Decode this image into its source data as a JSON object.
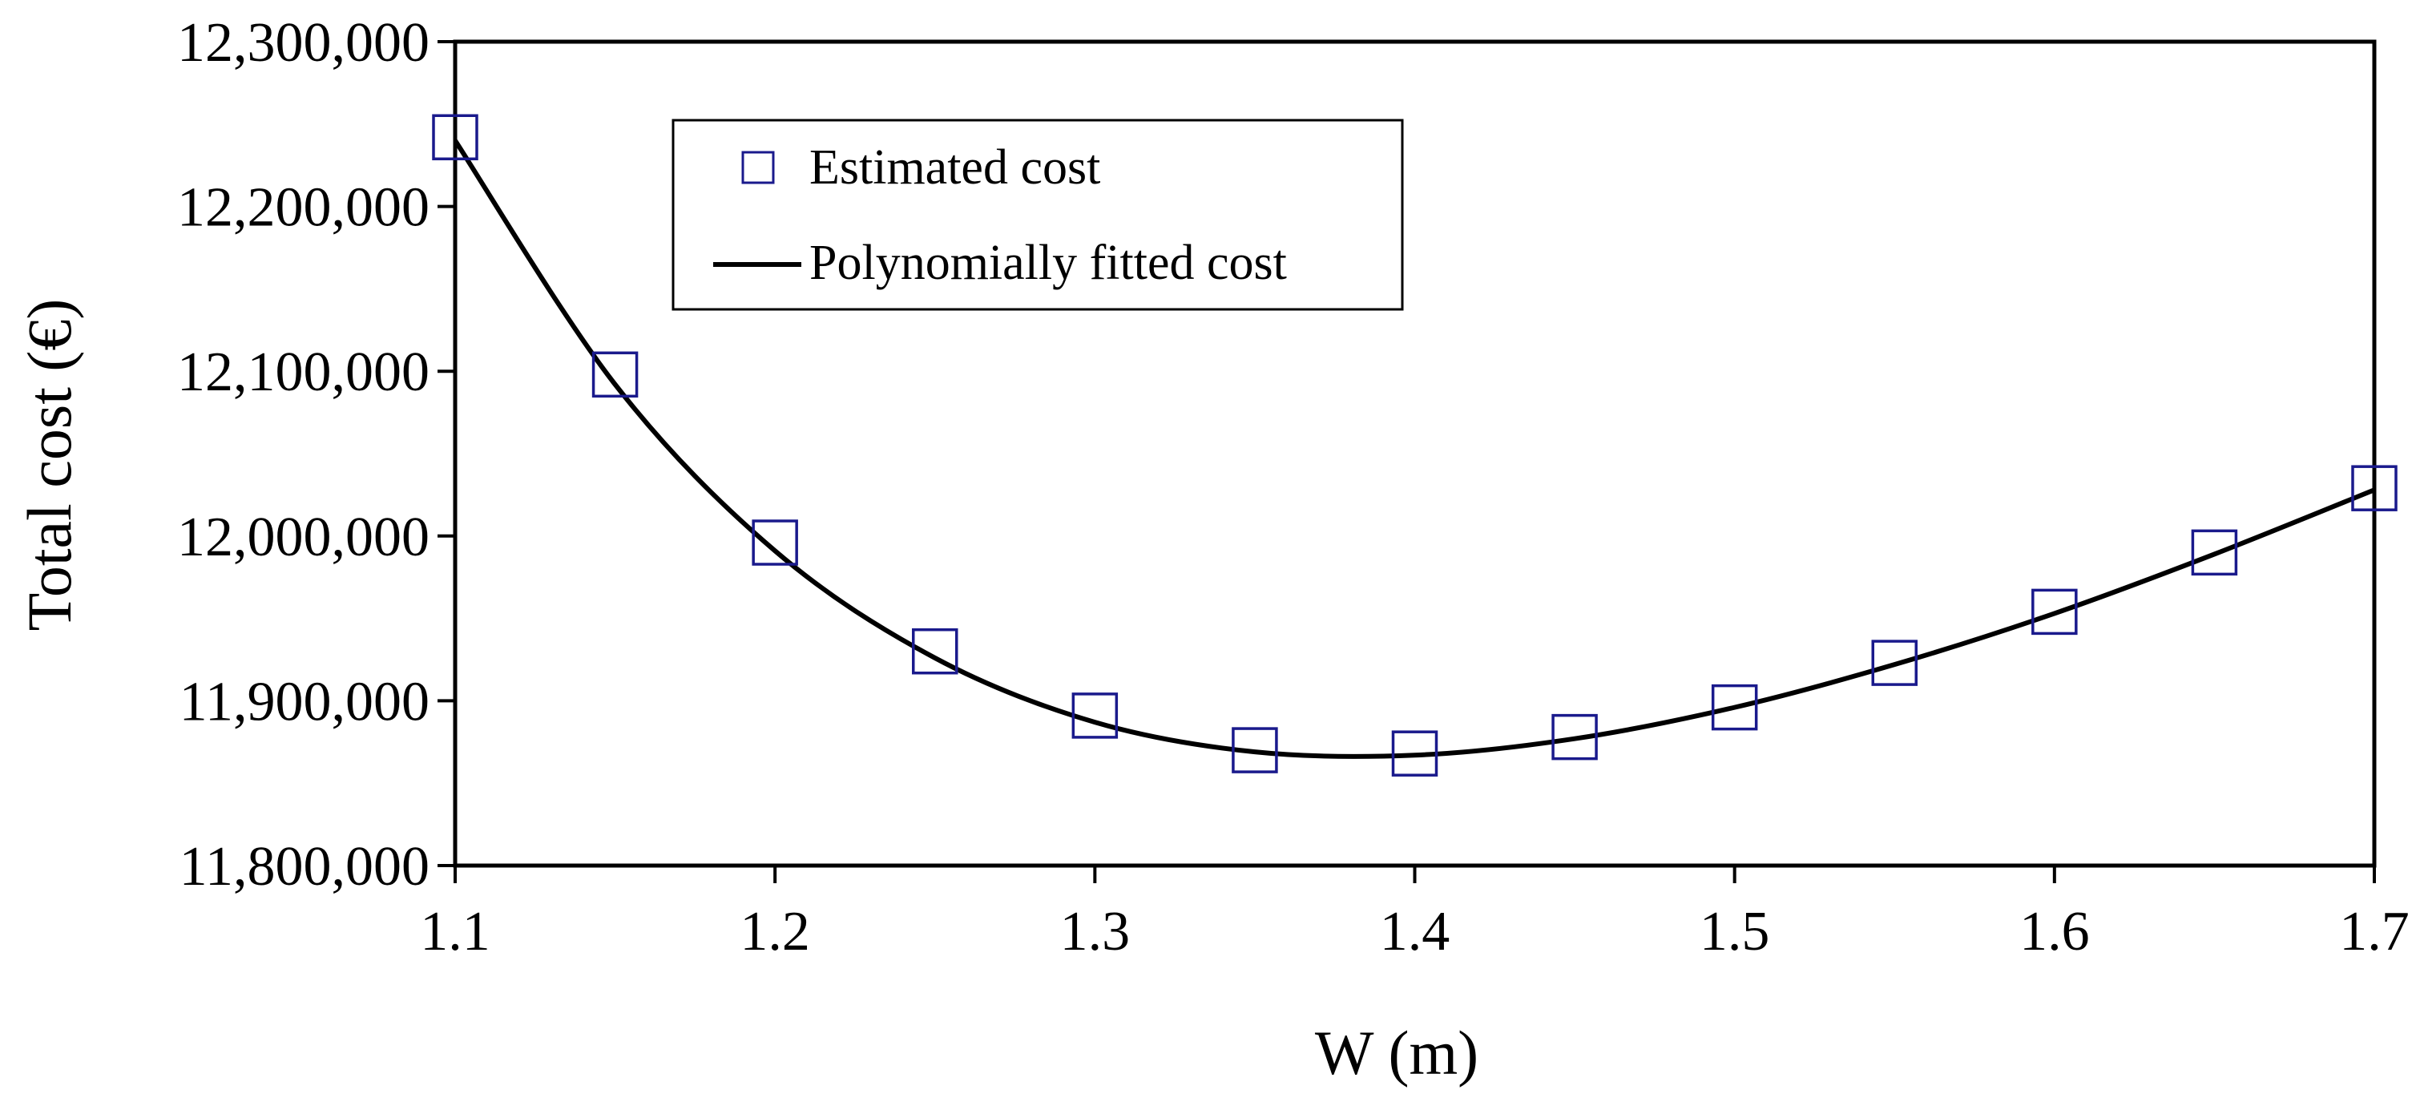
{
  "chart_data": {
    "type": "scatter",
    "title": "",
    "xlabel": "W (m)",
    "ylabel": "Total cost (€)",
    "xlim": [
      1.1,
      1.7
    ],
    "ylim": [
      11800000,
      12300000
    ],
    "x_ticks": [
      1.1,
      1.2,
      1.3,
      1.4,
      1.5,
      1.6,
      1.7
    ],
    "x_tick_labels": [
      "1.1",
      "1.2",
      "1.3",
      "1.4",
      "1.5",
      "1.6",
      "1.7"
    ],
    "y_ticks": [
      11800000,
      11900000,
      12000000,
      12100000,
      12200000,
      12300000
    ],
    "y_tick_labels": [
      "11,800,000",
      "11,900,000",
      "12,000,000",
      "12,100,000",
      "12,200,000",
      "12,300,000"
    ],
    "grid": false,
    "legend_position": "top-left",
    "colors": {
      "marker": "#1a1a8c",
      "line": "#000000",
      "frame": "#000000",
      "background": "#ffffff"
    },
    "series": [
      {
        "name": "Estimated cost",
        "kind": "markers",
        "marker": "square-open",
        "x": [
          1.1,
          1.15,
          1.2,
          1.25,
          1.3,
          1.35,
          1.4,
          1.45,
          1.5,
          1.55,
          1.6,
          1.65,
          1.7
        ],
        "values": [
          12242000,
          12098000,
          11996000,
          11930000,
          11891000,
          11870000,
          11868000,
          11878000,
          11896000,
          11923000,
          11954000,
          11990000,
          12029000
        ]
      },
      {
        "name": "Polynomially fitted cost",
        "kind": "line",
        "x": [
          1.1,
          1.15,
          1.2,
          1.25,
          1.3,
          1.35,
          1.4,
          1.45,
          1.5,
          1.55,
          1.6,
          1.65,
          1.7
        ],
        "values": [
          12240000,
          12092000,
          11991000,
          11926000,
          11887000,
          11869000,
          11867000,
          11877000,
          11896000,
          11922000,
          11953000,
          11989000,
          12028000
        ]
      }
    ]
  }
}
